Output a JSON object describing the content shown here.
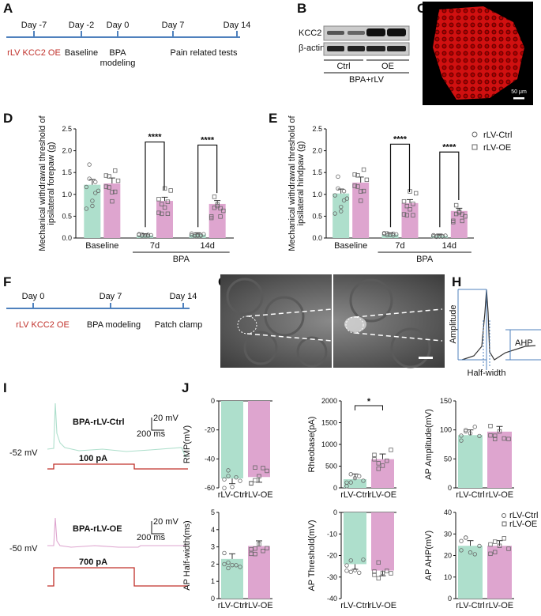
{
  "colors": {
    "ctrl": "#aedfcc",
    "oe": "#dea5cf",
    "red": "#c0302a",
    "tl": "#4f81bd"
  },
  "panel_letters": {
    "a": "A",
    "b": "B",
    "c": "C",
    "d": "D",
    "e": "E",
    "f": "F",
    "g": "G",
    "h": "H",
    "i": "I",
    "j": "J"
  },
  "timelineA": {
    "days": [
      "Day -7",
      "Day -2",
      "Day 0",
      "Day 7",
      "Day 14"
    ],
    "events": {
      "e1": "rLV KCC2 OE",
      "e2": "Baseline",
      "e3a": "BPA",
      "e3b": "modeling",
      "e4": "Pain related tests"
    }
  },
  "blotB": {
    "row1": "KCC2",
    "row2": "β-actin",
    "ctrl": "Ctrl",
    "oe": "OE",
    "bottom": "BPA+rLV"
  },
  "imageC": {
    "scale": "50 μm"
  },
  "timelineF": {
    "days": [
      "Day 0",
      "Day 7",
      "Day 14"
    ],
    "events": {
      "e1": "rLV KCC2 OE",
      "e2": "BPA modeling",
      "e3": "Patch clamp"
    }
  },
  "panelH": {
    "amp": "Amplitude",
    "ahp": "AHP",
    "hw": "Half-width"
  },
  "panelI": {
    "trace1": "BPA-rLV-Ctrl",
    "v1": "-52 mV",
    "i1": "100 pA",
    "trace2": "BPA-rLV-OE",
    "v2": "-50 mV",
    "i2": "700 pA",
    "sb_v": "20 mV",
    "sb_t": "200 ms"
  },
  "legend": {
    "ctrl": "rLV-Ctrl",
    "oe": "rLV-OE"
  },
  "chart_data": [
    {
      "id": "D",
      "type": "bar",
      "ylabel": "Mechanical withdrawal threshold of ipsilateral forepaw (g)",
      "ylim": [
        0,
        2.5
      ],
      "ticks": [
        "0.0",
        "0.5",
        "1.0",
        "1.5",
        "2.0",
        "2.5"
      ],
      "groups": [
        "Baseline",
        "7d",
        "14d"
      ],
      "group_title": "BPA",
      "series": [
        {
          "name": "rLV-Ctrl",
          "values": [
            1.22,
            0.06,
            0.08
          ]
        },
        {
          "name": "rLV-OE",
          "values": [
            1.25,
            0.85,
            0.78
          ]
        }
      ],
      "sig": [
        {
          "group": "7d",
          "label": "****"
        },
        {
          "group": "14d",
          "label": "****"
        }
      ]
    },
    {
      "id": "E",
      "type": "bar",
      "ylabel": "Mechanical withdrawal threshold of ipsilateral hindpaw (g)",
      "ylim": [
        0,
        2.5
      ],
      "ticks": [
        "0.0",
        "0.5",
        "1.0",
        "1.5",
        "2.0",
        "2.5"
      ],
      "groups": [
        "Baseline",
        "7d",
        "14d"
      ],
      "group_title": "BPA",
      "series": [
        {
          "name": "rLV-Ctrl",
          "values": [
            1.02,
            0.08,
            0.05
          ]
        },
        {
          "name": "rLV-OE",
          "values": [
            1.27,
            0.8,
            0.62
          ]
        }
      ],
      "sig": [
        {
          "group": "7d",
          "label": "****"
        },
        {
          "group": "14d",
          "label": "****"
        }
      ]
    },
    {
      "id": "J1",
      "type": "bar",
      "ylabel": "RMP(mV)",
      "ylim": [
        -60,
        0
      ],
      "ticks": [
        "0",
        "-20",
        "-40",
        "-60"
      ],
      "categories": [
        "rLV-Ctrl",
        "rLV-OE"
      ],
      "values": [
        -53.5,
        -52.5
      ]
    },
    {
      "id": "J2",
      "type": "bar",
      "ylabel": "Rheobase(pA)",
      "ylim": [
        0,
        2000
      ],
      "ticks": [
        "0",
        "500",
        "1000",
        "1500",
        "2000"
      ],
      "categories": [
        "rLV-Ctrl",
        "rLV-OE"
      ],
      "values": [
        200,
        660
      ],
      "sig": "*"
    },
    {
      "id": "J3",
      "type": "bar",
      "ylabel": "AP Amplitude(mV)",
      "ylim": [
        0,
        150
      ],
      "ticks": [
        "0",
        "50",
        "100",
        "150"
      ],
      "categories": [
        "rLV-Ctrl",
        "rLV-OE"
      ],
      "values": [
        91,
        97
      ]
    },
    {
      "id": "J4",
      "type": "bar",
      "ylabel": "AP Half-width(ms)",
      "ylim": [
        0,
        5
      ],
      "ticks": [
        "0",
        "1",
        "2",
        "3",
        "4",
        "5"
      ],
      "categories": [
        "rLV-Ctrl",
        "rLV-OE"
      ],
      "values": [
        2.3,
        3.05
      ]
    },
    {
      "id": "J5",
      "type": "bar",
      "ylabel": "AP Threshold(mV)",
      "ylim": [
        -40,
        0
      ],
      "ticks": [
        "0",
        "-10",
        "-20",
        "-30",
        "-40"
      ],
      "categories": [
        "rLV-Ctrl",
        "rLV-OE"
      ],
      "values": [
        -24,
        -27
      ]
    },
    {
      "id": "J6",
      "type": "bar",
      "ylabel": "AP AHP(mV)",
      "ylim": [
        0,
        40
      ],
      "ticks": [
        "0",
        "10",
        "20",
        "30",
        "40"
      ],
      "categories": [
        "rLV-Ctrl",
        "rLV-OE"
      ],
      "values": [
        24.5,
        24.5
      ]
    }
  ]
}
